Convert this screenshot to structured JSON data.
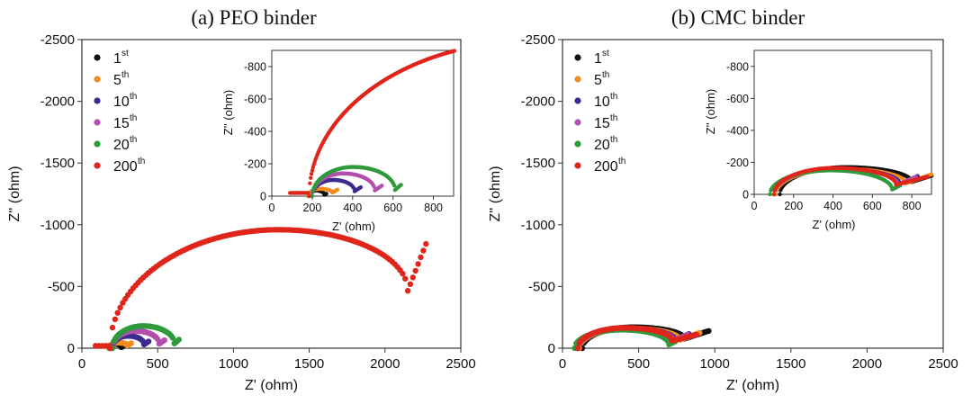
{
  "chart_data": [
    {
      "type": "scatter",
      "title": "(a) PEO binder",
      "xlabel": "Z' (ohm)",
      "ylabel": "Z'' (ohm)",
      "xlim": [
        0,
        2500
      ],
      "ylim": [
        0,
        -2500
      ],
      "xticks": [
        "0",
        "500",
        "1000",
        "1500",
        "2000",
        "2500"
      ],
      "yticks": [
        "0",
        "-500",
        "-1000",
        "-1500",
        "-2000",
        "-2500"
      ],
      "legend_position": "top-left",
      "series": [
        {
          "name": "1st",
          "label_base": "1",
          "label_sup": "st",
          "color": "#111111",
          "arc_start": 180,
          "arc_end": 260,
          "arc_height": 35,
          "tail_end": 270,
          "tail_y": 15
        },
        {
          "name": "5th",
          "label_base": "5",
          "label_sup": "th",
          "color": "#f28c1e",
          "arc_start": 180,
          "arc_end": 300,
          "arc_height": 45,
          "tail_end": 325,
          "tail_y": 40
        },
        {
          "name": "10th",
          "label_base": "10",
          "label_sup": "th",
          "color": "#3d2a8f",
          "arc_start": 200,
          "arc_end": 410,
          "arc_height": 100,
          "tail_end": 440,
          "tail_y": 55
        },
        {
          "name": "15th",
          "label_base": "15",
          "label_sup": "th",
          "color": "#b24fae",
          "arc_start": 200,
          "arc_end": 510,
          "arc_height": 140,
          "tail_end": 545,
          "tail_y": 65
        },
        {
          "name": "20th",
          "label_base": "20",
          "label_sup": "th",
          "color": "#2e9a3c",
          "arc_start": 200,
          "arc_end": 610,
          "arc_height": 180,
          "tail_end": 640,
          "tail_y": 70
        },
        {
          "name": "200th",
          "label_base": "200",
          "label_sup": "th",
          "color": "#e0251b",
          "lead_start": 90,
          "lead_end": 185,
          "lead_y": 20,
          "arc_start": 185,
          "arc_peak": 1300,
          "arc_end": 2150,
          "arc_height": 960,
          "tail_end": 2270,
          "tail_y": 845
        }
      ],
      "inset": {
        "xlabel": "Z' (ohm)",
        "ylabel": "Z'' (ohm)",
        "xlim": [
          0,
          900
        ],
        "ylim": [
          0,
          -900
        ],
        "xticks": [
          "0",
          "200",
          "400",
          "600",
          "800"
        ],
        "yticks": [
          "0",
          "-200",
          "-400",
          "-600",
          "-800"
        ]
      }
    },
    {
      "type": "scatter",
      "title": "(b) CMC binder",
      "xlabel": "Z' (ohm)",
      "ylabel": "Z'' (ohm)",
      "xlim": [
        0,
        2500
      ],
      "ylim": [
        0,
        -2500
      ],
      "xticks": [
        "0",
        "500",
        "1000",
        "1500",
        "2000",
        "2500"
      ],
      "yticks": [
        "0",
        "-500",
        "-1000",
        "-1500",
        "-2000",
        "-2500"
      ],
      "legend_position": "top-left",
      "series": [
        {
          "name": "1st",
          "label_base": "1",
          "label_sup": "st",
          "color": "#111111",
          "arc_start": 130,
          "arc_end": 800,
          "arc_height": 170,
          "tail_end": 960,
          "tail_y": 140
        },
        {
          "name": "5th",
          "label_base": "5",
          "label_sup": "th",
          "color": "#f28c1e",
          "arc_start": 110,
          "arc_end": 770,
          "arc_height": 160,
          "tail_end": 900,
          "tail_y": 125
        },
        {
          "name": "10th",
          "label_base": "10",
          "label_sup": "th",
          "color": "#3d2a8f",
          "arc_start": 100,
          "arc_end": 740,
          "arc_height": 160,
          "tail_end": 830,
          "tail_y": 115
        },
        {
          "name": "15th",
          "label_base": "15",
          "label_sup": "th",
          "color": "#b24fae",
          "arc_start": 100,
          "arc_end": 730,
          "arc_height": 160,
          "tail_end": 820,
          "tail_y": 110
        },
        {
          "name": "20th",
          "label_base": "20",
          "label_sup": "th",
          "color": "#2e9a3c",
          "arc_start": 80,
          "arc_end": 700,
          "arc_height": 150,
          "tail_end": 740,
          "tail_y": 55
        },
        {
          "name": "200th",
          "label_base": "200",
          "label_sup": "th",
          "color": "#e0251b",
          "arc_start": 100,
          "arc_end": 720,
          "arc_height": 165,
          "tail_end": 880,
          "tail_y": 110
        }
      ],
      "inset": {
        "xlabel": "Z' (ohm)",
        "ylabel": "Z'' (ohm)",
        "xlim": [
          0,
          900
        ],
        "ylim": [
          0,
          -900
        ],
        "xticks": [
          "0",
          "200",
          "400",
          "600",
          "800"
        ],
        "yticks": [
          "0",
          "-200",
          "-400",
          "-600",
          "-800"
        ]
      }
    }
  ]
}
